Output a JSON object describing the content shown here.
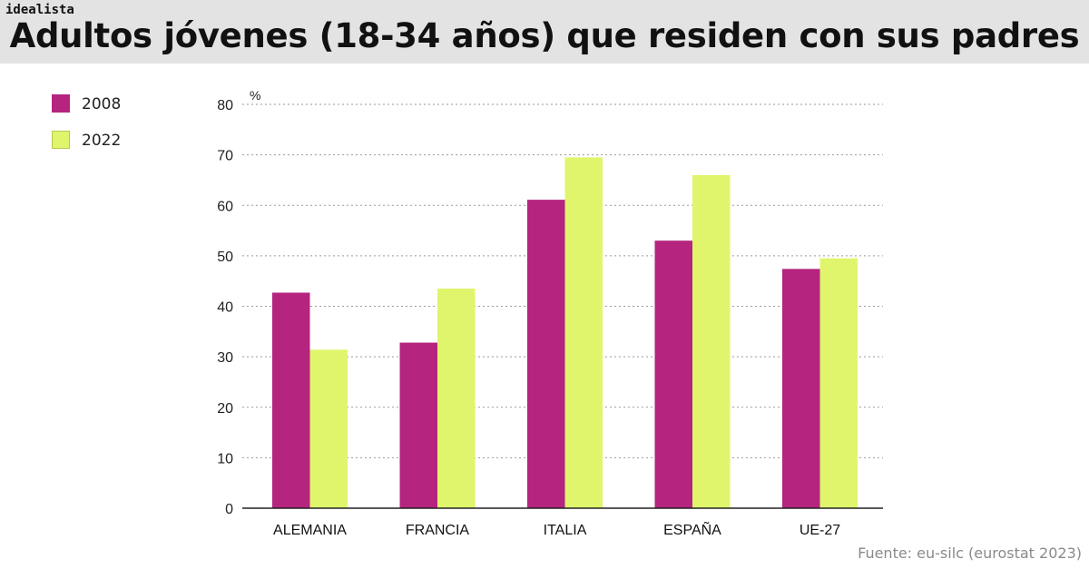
{
  "brand": "idealista",
  "title": "Adultos jóvenes (18-34 años) que residen con sus padres",
  "source": "Fuente: eu-silc (eurostat 2023)",
  "colors": {
    "s2008": "#b5247f",
    "s2022": "#e0f56c",
    "grid": "#9a9a9a",
    "axis": "#222222"
  },
  "chart_data": {
    "type": "bar",
    "title": "Adultos jóvenes (18-34 años) que residen con sus padres",
    "ylabel": "%",
    "xlabel": "",
    "ylim": [
      0,
      80
    ],
    "yticks": [
      0,
      10,
      20,
      30,
      40,
      50,
      60,
      70,
      80
    ],
    "grid": true,
    "legend": "top-left",
    "categories": [
      "ALEMANIA",
      "FRANCIA",
      "ITALIA",
      "ESPAÑA",
      "UE-27"
    ],
    "series": [
      {
        "name": "2008",
        "color": "#b5247f",
        "values": [
          42.7,
          32.8,
          61.1,
          53.0,
          47.4
        ]
      },
      {
        "name": "2022",
        "color": "#e0f56c",
        "values": [
          31.4,
          43.5,
          69.5,
          66.0,
          49.5
        ]
      }
    ]
  }
}
